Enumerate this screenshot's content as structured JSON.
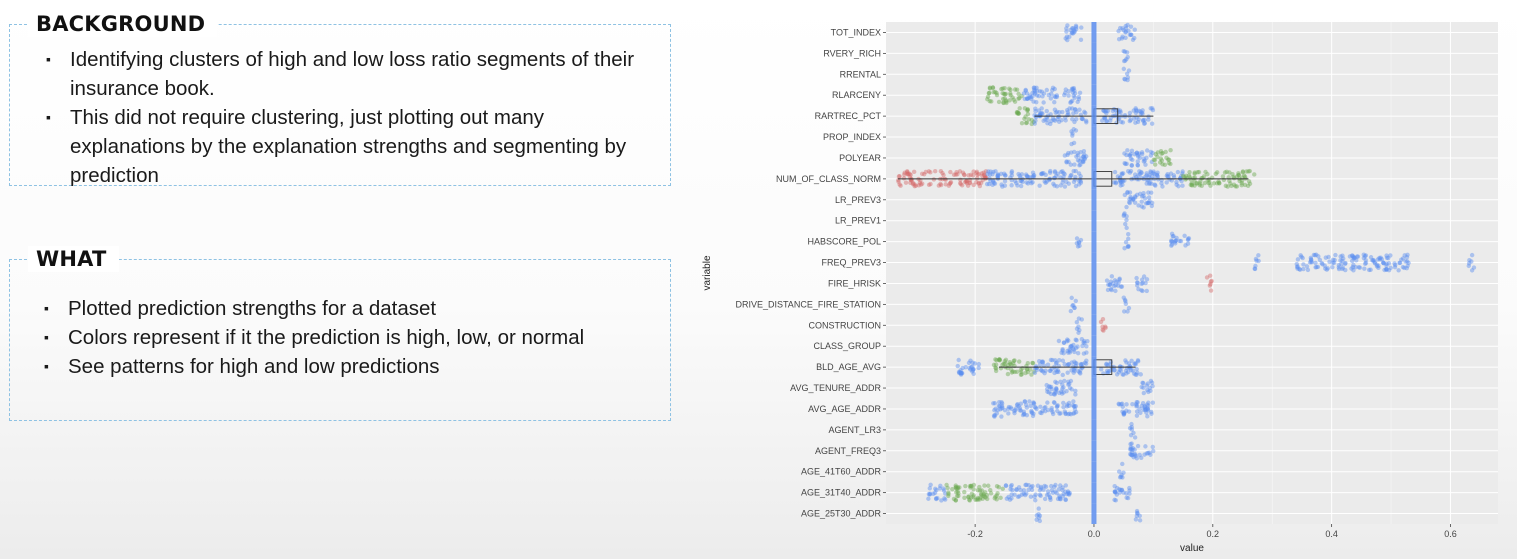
{
  "background": {
    "title": "BACKGROUND",
    "bullets": [
      "Identifying clusters of high and low loss ratio segments of their insurance book.",
      "This did not require clustering, just plotting out many explanations by the explanation strengths and segmenting by prediction"
    ]
  },
  "what": {
    "title": "WHAT",
    "bullets": [
      "Plotted prediction strengths for  a dataset",
      "Colors  represent if it the prediction is high, low, or normal",
      "See patterns for high and low predictions"
    ]
  },
  "colors": {
    "normal": "#5b8def",
    "high": "#d46a6a",
    "low": "#6aa84f",
    "panel": "#ebebeb",
    "grid": "#ffffff",
    "box_accent": "#8ec2e3"
  },
  "chart_data": {
    "type": "scatter",
    "title": "",
    "xlabel": "value",
    "ylabel": "variable",
    "xlim": [
      -0.35,
      0.68
    ],
    "x_ticks": [
      -0.2,
      0.0,
      0.2,
      0.4,
      0.6
    ],
    "x_tick_labels": [
      "-0.2",
      "0.0",
      "0.2",
      "0.4",
      "0.6"
    ],
    "grid": true,
    "categories": [
      "TOT_INDEX",
      "RVERY_RICH",
      "RRENTAL",
      "RLARCENY",
      "RARTREC_PCT",
      "PROP_INDEX",
      "POLYEAR",
      "NUM_OF_CLASS_NORM",
      "LR_PREV3",
      "LR_PREV1",
      "HABSCORE_POL",
      "FREQ_PREV3",
      "FIRE_HRISK",
      "DRIVE_DISTANCE_FIRE_STATION",
      "CONSTRUCTION",
      "CLASS_GROUP",
      "BLD_AGE_AVG",
      "AVG_TENURE_ADDR",
      "AVG_AGE_ADDR",
      "AGENT_LR3",
      "AGENT_FREQ3",
      "AGE_41T60_ADDR",
      "AGE_31T40_ADDR",
      "AGE_25T30_ADDR"
    ],
    "point_clusters": [
      {
        "variable": "TOT_INDEX",
        "ranges": [
          [
            -0.05,
            -0.02,
            "normal"
          ],
          [
            0.04,
            0.07,
            "normal"
          ]
        ]
      },
      {
        "variable": "RVERY_RICH",
        "ranges": [
          [
            0.05,
            0.06,
            "normal"
          ]
        ]
      },
      {
        "variable": "RRENTAL",
        "ranges": [
          [
            0.05,
            0.06,
            "normal"
          ]
        ]
      },
      {
        "variable": "RLARCENY",
        "ranges": [
          [
            -0.18,
            -0.12,
            "low"
          ],
          [
            -0.12,
            -0.06,
            "normal"
          ],
          [
            -0.05,
            -0.02,
            "normal"
          ]
        ]
      },
      {
        "variable": "RARTREC_PCT",
        "ranges": [
          [
            -0.13,
            -0.1,
            "low"
          ],
          [
            -0.1,
            -0.01,
            "normal"
          ],
          [
            0.01,
            0.1,
            "normal"
          ]
        ]
      },
      {
        "variable": "PROP_INDEX",
        "ranges": [
          [
            -0.04,
            -0.03,
            "normal"
          ]
        ]
      },
      {
        "variable": "POLYEAR",
        "ranges": [
          [
            -0.05,
            -0.01,
            "normal"
          ],
          [
            0.05,
            0.1,
            "normal"
          ],
          [
            0.1,
            0.13,
            "low"
          ]
        ]
      },
      {
        "variable": "NUM_OF_CLASS_NORM",
        "ranges": [
          [
            -0.33,
            -0.18,
            "high"
          ],
          [
            -0.18,
            -0.02,
            "normal"
          ],
          [
            0.03,
            0.15,
            "normal"
          ],
          [
            0.15,
            0.27,
            "low"
          ]
        ]
      },
      {
        "variable": "LR_PREV3",
        "ranges": [
          [
            0.05,
            0.1,
            "normal"
          ]
        ]
      },
      {
        "variable": "LR_PREV1",
        "ranges": [
          [
            0.05,
            0.06,
            "normal"
          ]
        ]
      },
      {
        "variable": "HABSCORE_POL",
        "ranges": [
          [
            -0.03,
            -0.02,
            "normal"
          ],
          [
            0.05,
            0.06,
            "normal"
          ],
          [
            0.13,
            0.16,
            "normal"
          ]
        ]
      },
      {
        "variable": "FREQ_PREV3",
        "ranges": [
          [
            0.27,
            0.28,
            "normal"
          ],
          [
            0.34,
            0.53,
            "normal"
          ],
          [
            0.63,
            0.64,
            "normal"
          ]
        ]
      },
      {
        "variable": "FIRE_HRISK",
        "ranges": [
          [
            0.02,
            0.05,
            "normal"
          ],
          [
            0.07,
            0.09,
            "normal"
          ],
          [
            0.19,
            0.2,
            "high"
          ]
        ]
      },
      {
        "variable": "DRIVE_DISTANCE_FIRE_STATION",
        "ranges": [
          [
            -0.04,
            -0.03,
            "normal"
          ],
          [
            0.05,
            0.06,
            "normal"
          ]
        ]
      },
      {
        "variable": "CONSTRUCTION",
        "ranges": [
          [
            -0.03,
            -0.02,
            "normal"
          ],
          [
            0.01,
            0.02,
            "high"
          ]
        ]
      },
      {
        "variable": "CLASS_GROUP",
        "ranges": [
          [
            -0.06,
            -0.01,
            "normal"
          ]
        ]
      },
      {
        "variable": "BLD_AGE_AVG",
        "ranges": [
          [
            -0.23,
            -0.19,
            "normal"
          ],
          [
            -0.17,
            -0.1,
            "low"
          ],
          [
            -0.1,
            -0.01,
            "normal"
          ],
          [
            0.01,
            0.08,
            "normal"
          ]
        ]
      },
      {
        "variable": "AVG_TENURE_ADDR",
        "ranges": [
          [
            -0.08,
            -0.03,
            "normal"
          ],
          [
            0.08,
            0.1,
            "normal"
          ]
        ]
      },
      {
        "variable": "AVG_AGE_ADDR",
        "ranges": [
          [
            -0.17,
            -0.12,
            "normal"
          ],
          [
            -0.12,
            -0.03,
            "normal"
          ],
          [
            0.04,
            0.1,
            "normal"
          ]
        ]
      },
      {
        "variable": "AGENT_LR3",
        "ranges": [
          [
            0.06,
            0.07,
            "normal"
          ]
        ]
      },
      {
        "variable": "AGENT_FREQ3",
        "ranges": [
          [
            0.06,
            0.1,
            "normal"
          ]
        ]
      },
      {
        "variable": "AGE_41T60_ADDR",
        "ranges": [
          [
            0.04,
            0.05,
            "normal"
          ]
        ]
      },
      {
        "variable": "AGE_31T40_ADDR",
        "ranges": [
          [
            -0.28,
            -0.25,
            "normal"
          ],
          [
            -0.25,
            -0.15,
            "low"
          ],
          [
            -0.15,
            -0.04,
            "normal"
          ],
          [
            0.03,
            0.06,
            "normal"
          ]
        ]
      },
      {
        "variable": "AGE_25T30_ADDR",
        "ranges": [
          [
            -0.1,
            -0.09,
            "normal"
          ],
          [
            0.07,
            0.08,
            "normal"
          ]
        ]
      }
    ],
    "boxplots": [
      {
        "variable": "RARTREC_PCT",
        "whisker": [
          -0.1,
          0.1
        ],
        "box": [
          0.0,
          0.04
        ]
      },
      {
        "variable": "NUM_OF_CLASS_NORM",
        "whisker": [
          -0.33,
          0.26
        ],
        "box": [
          0.0,
          0.03
        ]
      },
      {
        "variable": "BLD_AGE_AVG",
        "whisker": [
          -0.16,
          0.07
        ],
        "box": [
          0.0,
          0.03
        ]
      }
    ]
  }
}
